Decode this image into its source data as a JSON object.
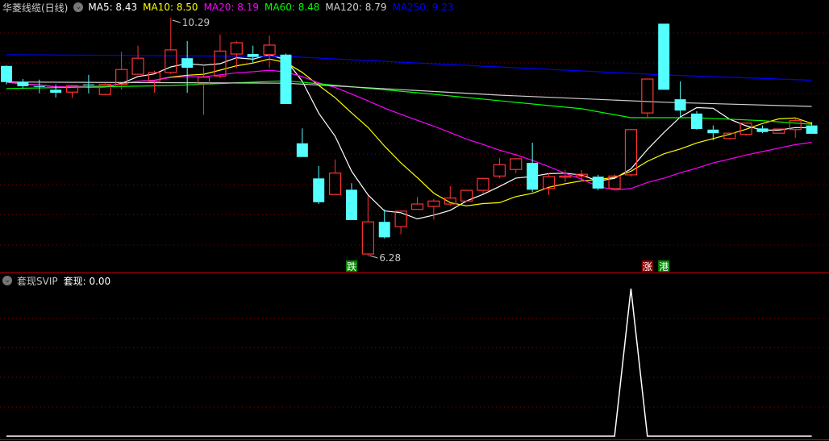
{
  "header": {
    "title": "华菱线缆(日线)",
    "ma_labels": [
      {
        "label": "MA5: 8.43",
        "color": "#ffffff"
      },
      {
        "label": "MA10: 8.50",
        "color": "#ffff00"
      },
      {
        "label": "MA20: 8.19",
        "color": "#ff00ff"
      },
      {
        "label": "MA60: 8.48",
        "color": "#00ff00"
      },
      {
        "label": "MA120: 8.79",
        "color": "#d0d0d0"
      },
      {
        "label": "MA250: 9.23",
        "color": "#0000ff"
      }
    ],
    "dropdown_icon": "chevron-down-circle-icon"
  },
  "sub_header": {
    "name": "套现SVIP",
    "value_label": "套现: 0.00"
  },
  "colors": {
    "up": "#ff3333",
    "down": "#54ffff",
    "grid": "#8b0000",
    "divider": "#cc0000"
  },
  "chart_data": [
    {
      "type": "candlestick",
      "ylim": [
        6.2,
        10.6
      ],
      "grid": true,
      "ohlc": [
        [
          9.48,
          9.21,
          9.49,
          9.17
        ],
        [
          9.21,
          9.14,
          9.26,
          9.1
        ],
        [
          9.14,
          9.13,
          9.25,
          9.02
        ],
        [
          9.08,
          9.03,
          9.17,
          8.95
        ],
        [
          9.04,
          9.15,
          9.15,
          8.94
        ],
        [
          9.17,
          9.16,
          9.33,
          9.02
        ],
        [
          9.0,
          9.17,
          9.19,
          9.0
        ],
        [
          9.17,
          9.42,
          9.72,
          9.08
        ],
        [
          9.34,
          9.61,
          9.82,
          9.34
        ],
        [
          9.22,
          9.37,
          9.4,
          9.03
        ],
        [
          9.37,
          9.75,
          10.29,
          9.34
        ],
        [
          9.61,
          9.45,
          9.9,
          9.03
        ],
        [
          9.18,
          9.29,
          9.46,
          8.66
        ],
        [
          9.31,
          9.73,
          10.01,
          9.27
        ],
        [
          9.68,
          9.87,
          9.9,
          9.44
        ],
        [
          9.68,
          9.63,
          9.82,
          9.53
        ],
        [
          9.67,
          9.83,
          9.99,
          9.45
        ],
        [
          9.67,
          8.84,
          9.69,
          8.84
        ],
        [
          8.18,
          7.95,
          8.43,
          7.95
        ],
        [
          7.59,
          7.19,
          7.8,
          7.16
        ],
        [
          7.32,
          7.68,
          7.91,
          7.32
        ],
        [
          7.4,
          6.89,
          7.51,
          6.89
        ],
        [
          6.32,
          6.86,
          7.3,
          6.28
        ],
        [
          6.86,
          6.6,
          7.07,
          6.58
        ],
        [
          6.78,
          7.04,
          7.04,
          6.65
        ],
        [
          7.07,
          7.16,
          7.28,
          7.07
        ],
        [
          7.12,
          7.21,
          7.24,
          6.9
        ],
        [
          7.16,
          7.26,
          7.46,
          7.13
        ],
        [
          7.21,
          7.39,
          7.39,
          7.19
        ],
        [
          7.39,
          7.59,
          7.59,
          7.34
        ],
        [
          7.63,
          7.82,
          7.93,
          7.59
        ],
        [
          7.74,
          7.92,
          7.93,
          7.68
        ],
        [
          7.85,
          7.4,
          8.19,
          7.36
        ],
        [
          7.42,
          7.62,
          7.68,
          7.31
        ],
        [
          7.61,
          7.63,
          7.73,
          7.53
        ],
        [
          7.63,
          7.66,
          7.73,
          7.54
        ],
        [
          7.62,
          7.42,
          7.65,
          7.39
        ],
        [
          7.42,
          7.63,
          7.66,
          7.42
        ],
        [
          7.65,
          8.41,
          8.41,
          7.62
        ],
        [
          8.69,
          9.26,
          9.26,
          8.62
        ],
        [
          10.19,
          9.08,
          10.19,
          9.08
        ],
        [
          8.92,
          8.73,
          9.22,
          8.62
        ],
        [
          8.68,
          8.42,
          8.72,
          8.41
        ],
        [
          8.41,
          8.35,
          8.48,
          8.23
        ],
        [
          8.26,
          8.35,
          8.35,
          8.24
        ],
        [
          8.33,
          8.52,
          8.52,
          8.31
        ],
        [
          8.43,
          8.37,
          8.48,
          8.35
        ],
        [
          8.35,
          8.42,
          8.42,
          8.34
        ],
        [
          8.41,
          8.56,
          8.62,
          8.27
        ],
        [
          8.48,
          8.34,
          8.54,
          8.34
        ]
      ],
      "moving_averages": [
        {
          "name": "MA5",
          "period": 5,
          "color": "#ffffff"
        },
        {
          "name": "MA10",
          "period": 10,
          "color": "#ffff00"
        },
        {
          "name": "MA20",
          "period": 20,
          "color": "#ff00ff"
        },
        {
          "name": "MA60",
          "color": "#00ff00",
          "points": [
            [
              0,
              9.1
            ],
            [
              10,
              9.15
            ],
            [
              17,
              9.23
            ],
            [
              25,
              9.03
            ],
            [
              35,
              8.76
            ],
            [
              38,
              8.61
            ],
            [
              42,
              8.61
            ],
            [
              46,
              8.56
            ],
            [
              49,
              8.5
            ]
          ]
        },
        {
          "name": "MA120",
          "color": "#d0d0d0",
          "points": [
            [
              0,
              9.21
            ],
            [
              17,
              9.19
            ],
            [
              30,
              8.99
            ],
            [
              40,
              8.87
            ],
            [
              49,
              8.8
            ]
          ]
        },
        {
          "name": "MA250",
          "color": "#0000ff",
          "points": [
            [
              0,
              9.67
            ],
            [
              17,
              9.64
            ],
            [
              25,
              9.53
            ],
            [
              40,
              9.33
            ],
            [
              49,
              9.24
            ]
          ]
        }
      ],
      "annotations": [
        {
          "index": 10,
          "price": 10.29,
          "text": "10.29",
          "kind": "max"
        },
        {
          "index": 22,
          "price": 6.28,
          "text": "6.28",
          "kind": "min"
        }
      ],
      "signals": [
        {
          "index": 21,
          "text": "跌",
          "color": "#008800"
        },
        {
          "index": 39,
          "text": "涨",
          "color": "#880000"
        },
        {
          "index": 40,
          "text": "港",
          "color": "#008800"
        }
      ]
    },
    {
      "type": "line",
      "name": "套现",
      "ylim": [
        0,
        1
      ],
      "values": [
        0,
        0,
        0,
        0,
        0,
        0,
        0,
        0,
        0,
        0,
        0,
        0,
        0,
        0,
        0,
        0,
        0,
        0,
        0,
        0,
        0,
        0,
        0,
        0,
        0,
        0,
        0,
        0,
        0,
        0,
        0,
        0,
        0,
        0,
        0,
        0,
        0,
        0,
        1,
        0,
        0,
        0,
        0,
        0,
        0,
        0,
        0,
        0,
        0,
        0
      ],
      "color": "#ffffff"
    }
  ]
}
